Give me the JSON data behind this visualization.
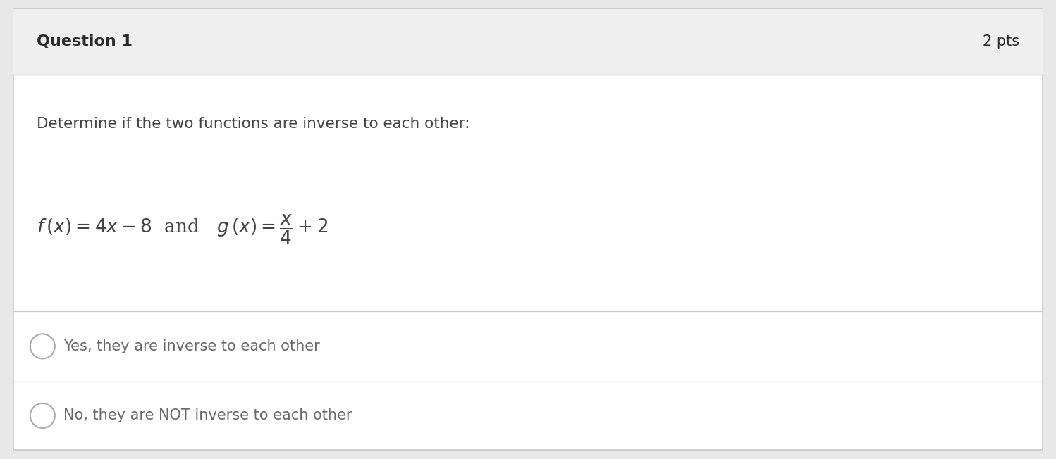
{
  "title": "Question 1",
  "pts": "2 pts",
  "question_text": "Determine if the two functions are inverse to each other:",
  "option1": "Yes, they are inverse to each other",
  "option2": "No, they are NOT inverse to each other",
  "bg_color": "#ffffff",
  "header_bg": "#efefef",
  "border_color": "#c8c8c8",
  "text_color": "#444444",
  "header_text_color": "#2a2a2a",
  "option_text_color": "#666677",
  "title_fontsize": 16,
  "pts_fontsize": 15,
  "question_fontsize": 15.5,
  "formula_fontsize": 19,
  "option_fontsize": 15
}
